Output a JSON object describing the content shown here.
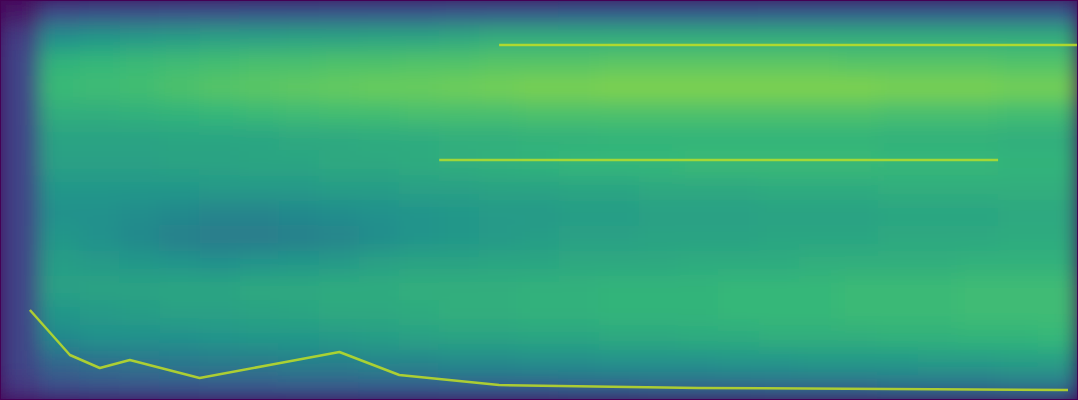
{
  "chart_data": {
    "type": "heatmap",
    "tick_labels": false,
    "xlim": [
      0,
      27
    ],
    "ylim": [
      0,
      16
    ],
    "zlim": [
      0,
      1
    ],
    "cells": [
      [
        0.2,
        0.3,
        0.32,
        0.33,
        0.34,
        0.35,
        0.35,
        0.36,
        0.36,
        0.37,
        0.37,
        0.38,
        0.38,
        0.38,
        0.39,
        0.39,
        0.4,
        0.4,
        0.4,
        0.41,
        0.41,
        0.41,
        0.42,
        0.42,
        0.42,
        0.43,
        0.43
      ],
      [
        0.25,
        0.4,
        0.42,
        0.43,
        0.44,
        0.45,
        0.45,
        0.46,
        0.46,
        0.47,
        0.47,
        0.48,
        0.48,
        0.49,
        0.49,
        0.5,
        0.5,
        0.5,
        0.51,
        0.51,
        0.52,
        0.52,
        0.52,
        0.53,
        0.53,
        0.54,
        0.54
      ],
      [
        0.25,
        0.48,
        0.5,
        0.5,
        0.5,
        0.51,
        0.52,
        0.52,
        0.53,
        0.54,
        0.55,
        0.56,
        0.56,
        0.57,
        0.57,
        0.58,
        0.58,
        0.59,
        0.59,
        0.6,
        0.6,
        0.6,
        0.61,
        0.61,
        0.62,
        0.62,
        0.63
      ],
      [
        0.25,
        0.52,
        0.53,
        0.54,
        0.55,
        0.55,
        0.56,
        0.57,
        0.58,
        0.58,
        0.59,
        0.6,
        0.6,
        0.61,
        0.61,
        0.62,
        0.62,
        0.62,
        0.63,
        0.63,
        0.63,
        0.64,
        0.64,
        0.64,
        0.65,
        0.65,
        0.65
      ],
      [
        0.25,
        0.55,
        0.56,
        0.56,
        0.57,
        0.57,
        0.58,
        0.58,
        0.59,
        0.59,
        0.6,
        0.6,
        0.6,
        0.61,
        0.61,
        0.62,
        0.62,
        0.62,
        0.63,
        0.63,
        0.63,
        0.64,
        0.64,
        0.64,
        0.65,
        0.65,
        0.65
      ],
      [
        0.25,
        0.54,
        0.53,
        0.52,
        0.51,
        0.5,
        0.51,
        0.52,
        0.53,
        0.55,
        0.56,
        0.56,
        0.57,
        0.57,
        0.58,
        0.58,
        0.58,
        0.59,
        0.59,
        0.59,
        0.6,
        0.6,
        0.6,
        0.6,
        0.61,
        0.61,
        0.61
      ],
      [
        0.25,
        0.52,
        0.5,
        0.48,
        0.46,
        0.45,
        0.45,
        0.46,
        0.47,
        0.49,
        0.51,
        0.52,
        0.53,
        0.54,
        0.55,
        0.55,
        0.56,
        0.56,
        0.56,
        0.57,
        0.57,
        0.57,
        0.58,
        0.58,
        0.58,
        0.59,
        0.59
      ],
      [
        0.25,
        0.5,
        0.5,
        0.49,
        0.48,
        0.47,
        0.47,
        0.48,
        0.49,
        0.5,
        0.51,
        0.52,
        0.53,
        0.53,
        0.54,
        0.54,
        0.55,
        0.55,
        0.55,
        0.56,
        0.56,
        0.56,
        0.57,
        0.57,
        0.57,
        0.58,
        0.58
      ],
      [
        0.25,
        0.52,
        0.52,
        0.52,
        0.52,
        0.53,
        0.53,
        0.53,
        0.54,
        0.54,
        0.55,
        0.55,
        0.56,
        0.56,
        0.57,
        0.57,
        0.58,
        0.58,
        0.58,
        0.59,
        0.59,
        0.59,
        0.6,
        0.6,
        0.6,
        0.6,
        0.6
      ],
      [
        0.25,
        0.55,
        0.55,
        0.55,
        0.56,
        0.56,
        0.57,
        0.57,
        0.58,
        0.58,
        0.59,
        0.6,
        0.61,
        0.62,
        0.63,
        0.63,
        0.63,
        0.64,
        0.64,
        0.64,
        0.64,
        0.64,
        0.63,
        0.63,
        0.63,
        0.62,
        0.62
      ],
      [
        0.25,
        0.56,
        0.56,
        0.56,
        0.57,
        0.57,
        0.57,
        0.58,
        0.58,
        0.59,
        0.59,
        0.6,
        0.6,
        0.61,
        0.61,
        0.62,
        0.62,
        0.62,
        0.62,
        0.62,
        0.62,
        0.62,
        0.61,
        0.61,
        0.61,
        0.6,
        0.6
      ],
      [
        0.25,
        0.6,
        0.6,
        0.61,
        0.62,
        0.63,
        0.64,
        0.65,
        0.66,
        0.66,
        0.67,
        0.67,
        0.67,
        0.68,
        0.68,
        0.68,
        0.68,
        0.68,
        0.68,
        0.68,
        0.68,
        0.68,
        0.67,
        0.67,
        0.67,
        0.66,
        0.66
      ],
      [
        0.25,
        0.64,
        0.65,
        0.66,
        0.68,
        0.7,
        0.71,
        0.72,
        0.73,
        0.74,
        0.74,
        0.75,
        0.76,
        0.77,
        0.77,
        0.78,
        0.78,
        0.78,
        0.78,
        0.78,
        0.78,
        0.78,
        0.77,
        0.77,
        0.77,
        0.76,
        0.76
      ],
      [
        0.25,
        0.62,
        0.63,
        0.64,
        0.65,
        0.66,
        0.67,
        0.67,
        0.68,
        0.68,
        0.69,
        0.69,
        0.7,
        0.7,
        0.7,
        0.71,
        0.71,
        0.71,
        0.71,
        0.71,
        0.71,
        0.7,
        0.7,
        0.7,
        0.7,
        0.69,
        0.69
      ],
      [
        0.22,
        0.5,
        0.52,
        0.53,
        0.54,
        0.55,
        0.55,
        0.56,
        0.56,
        0.57,
        0.57,
        0.58,
        0.6,
        0.6,
        0.6,
        0.6,
        0.6,
        0.6,
        0.6,
        0.6,
        0.6,
        0.6,
        0.6,
        0.6,
        0.6,
        0.6,
        0.6
      ],
      [
        0.08,
        0.3,
        0.32,
        0.32,
        0.33,
        0.33,
        0.34,
        0.34,
        0.35,
        0.35,
        0.35,
        0.36,
        0.36,
        0.36,
        0.37,
        0.37,
        0.37,
        0.37,
        0.37,
        0.38,
        0.38,
        0.38,
        0.38,
        0.38,
        0.38,
        0.38,
        0.38
      ]
    ],
    "series": [
      {
        "type": "line",
        "color": "#c2df23",
        "x": [
          0.75,
          1.75,
          2.5,
          3.25,
          5,
          6.75,
          8.5,
          10,
          12.5,
          17.5,
          26.75
        ],
        "values": [
          3.6,
          1.8,
          1.28,
          1.6,
          0.88,
          1.4,
          1.92,
          1.0,
          0.6,
          0.48,
          0.4
        ]
      },
      {
        "type": "line",
        "color": "#c2df23",
        "x": [
          12.5,
          27
        ],
        "values": [
          14.2,
          14.2
        ]
      },
      {
        "type": "line",
        "color": "#b5de2b",
        "x": [
          11,
          25
        ],
        "values": [
          9.6,
          9.6
        ]
      }
    ]
  }
}
